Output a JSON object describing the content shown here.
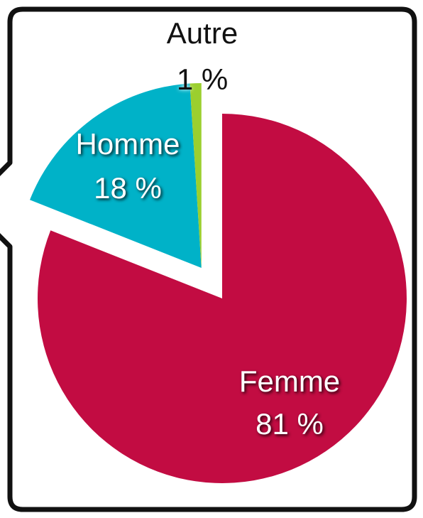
{
  "chart_data": {
    "type": "pie",
    "categories": [
      "Femme",
      "Homme",
      "Autre"
    ],
    "values": [
      81,
      18,
      1
    ],
    "value_labels": [
      "81 %",
      "18 %",
      "1 %"
    ],
    "colors": [
      "#c20c42",
      "#00b2c8",
      "#9bcf2e"
    ],
    "explode": [
      false,
      true,
      true
    ]
  }
}
